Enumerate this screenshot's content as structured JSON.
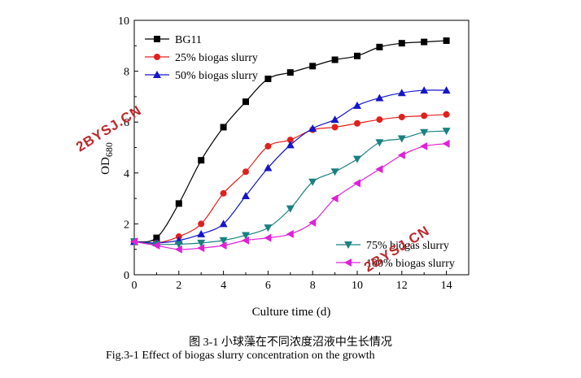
{
  "chart_data": {
    "type": "line",
    "xlabel": "Culture time (d)",
    "ylabel": "OD",
    "ylabel_sub": "680",
    "xlim": [
      0,
      15
    ],
    "ylim": [
      0,
      10
    ],
    "x_ticks": [
      0,
      2,
      4,
      6,
      8,
      10,
      12,
      14
    ],
    "y_ticks": [
      0,
      2,
      4,
      6,
      8,
      10
    ],
    "grid": false,
    "legend_placement": "top-left (first three) and bottom-right (last two)",
    "series": [
      {
        "name": "BG11",
        "color": "#000000",
        "marker": "square",
        "x": [
          0,
          1,
          2,
          3,
          4,
          5,
          6,
          7,
          8,
          9,
          10,
          11,
          12,
          13,
          14
        ],
        "y": [
          1.3,
          1.45,
          2.8,
          4.5,
          5.8,
          6.8,
          7.7,
          7.95,
          8.2,
          8.45,
          8.6,
          8.95,
          9.1,
          9.15,
          9.2
        ]
      },
      {
        "name": "25% biogas slurry",
        "color": "#e0201c",
        "marker": "circle",
        "x": [
          0,
          1,
          2,
          3,
          4,
          5,
          6,
          7,
          8,
          9,
          10,
          11,
          12,
          13,
          14
        ],
        "y": [
          1.3,
          1.25,
          1.5,
          2.0,
          3.2,
          4.05,
          5.05,
          5.3,
          5.7,
          5.8,
          5.95,
          6.1,
          6.2,
          6.25,
          6.3
        ]
      },
      {
        "name": "50% biogas slurry",
        "color": "#1515c8",
        "marker": "triangle-up",
        "x": [
          0,
          1,
          2,
          3,
          4,
          5,
          6,
          7,
          8,
          9,
          10,
          11,
          12,
          13,
          14
        ],
        "y": [
          1.3,
          1.25,
          1.35,
          1.6,
          2.0,
          3.1,
          4.2,
          5.1,
          5.75,
          6.1,
          6.65,
          6.95,
          7.15,
          7.25,
          7.25
        ]
      },
      {
        "name": "75% biogas slurry",
        "color": "#1a8080",
        "marker": "triangle-down",
        "x": [
          0,
          1,
          2,
          3,
          4,
          5,
          6,
          7,
          8,
          9,
          10,
          11,
          12,
          13,
          14
        ],
        "y": [
          1.3,
          1.2,
          1.2,
          1.25,
          1.35,
          1.55,
          1.85,
          2.6,
          3.65,
          4.05,
          4.55,
          5.2,
          5.35,
          5.6,
          5.65
        ]
      },
      {
        "name": "100% biogas slurry",
        "color": "#e020d8",
        "marker": "triangle-left",
        "x": [
          0,
          1,
          2,
          3,
          4,
          5,
          6,
          7,
          8,
          9,
          10,
          11,
          12,
          13,
          14
        ],
        "y": [
          1.3,
          1.15,
          1.0,
          1.05,
          1.15,
          1.35,
          1.45,
          1.6,
          2.05,
          3.0,
          3.6,
          4.15,
          4.7,
          5.05,
          5.15
        ]
      }
    ]
  },
  "watermarks": [
    "2BYSJ.CN",
    "2BYSJ.CN"
  ],
  "caption": {
    "cn": "图 3-1  小球藻在不同浓度沼液中生长情况",
    "en": "Fig.3-1 Effect of biogas slurry concentration on the growth"
  }
}
